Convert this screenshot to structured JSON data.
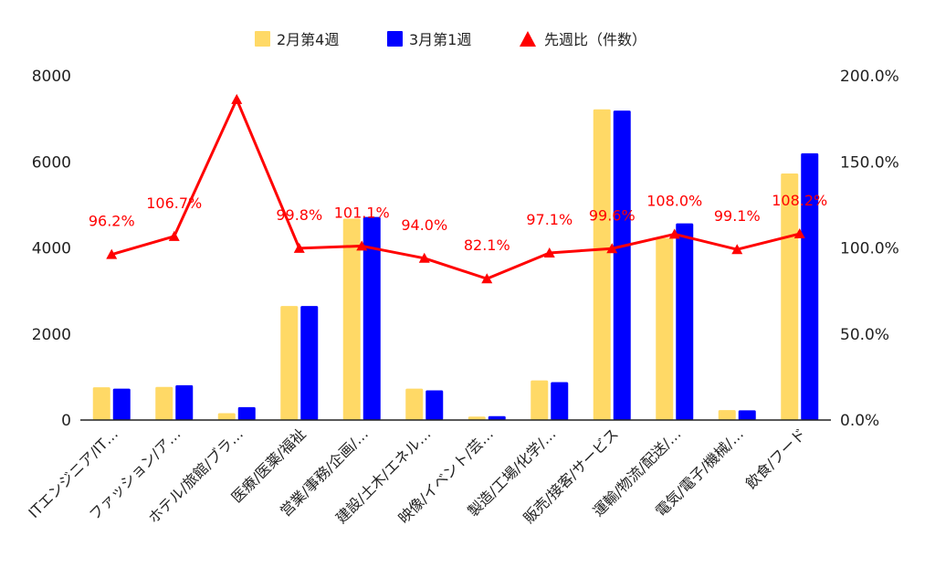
{
  "colors": {
    "series1": "#ffd966",
    "series2": "#0000ff",
    "ratio": "#ff0000",
    "axis": "#222222"
  },
  "chart_data": {
    "type": "bar",
    "categories": [
      "ITエンジニア/IT…",
      "ファッション/ア…",
      "ホテル/旅館/ブラ…",
      "医療/医薬/福祉",
      "営業/事務/企画/…",
      "建設/土木/エネル…",
      "映像/イベント/芸…",
      "製造/工場/化学/…",
      "販売/接客/サービス",
      "運輸/物流/配送/…",
      "電気/電子/機械/…",
      "飲食/フード"
    ],
    "series": [
      {
        "name": "2月第4週",
        "axis": "left",
        "type": "bar",
        "values": [
          760,
          770,
          160,
          2650,
          4680,
          730,
          80,
          920,
          7220,
          4230,
          230,
          5730
        ]
      },
      {
        "name": "3月第1週",
        "axis": "left",
        "type": "bar",
        "values": [
          730,
          810,
          300,
          2650,
          4720,
          690,
          90,
          880,
          7190,
          4570,
          225,
          6200
        ]
      },
      {
        "name": "先週比（件数）",
        "axis": "right",
        "type": "line",
        "values": [
          96.2,
          106.7,
          186.3,
          99.8,
          101.1,
          94.0,
          82.1,
          97.1,
          99.6,
          108.0,
          99.1,
          108.2
        ],
        "labels": [
          "96.2%",
          "106.7%",
          null,
          "99.8%",
          "101.1%",
          "94.0%",
          "82.1%",
          "97.1%",
          "99.6%",
          "108.0%",
          "99.1%",
          "108.2%"
        ]
      }
    ],
    "y_left": {
      "ylim": [
        0,
        8000
      ],
      "ticks": [
        "0",
        "2000",
        "4000",
        "6000",
        "8000"
      ]
    },
    "y_right": {
      "ylim": [
        0,
        200
      ],
      "ticks": [
        "0.0%",
        "50.0%",
        "100.0%",
        "150.0%",
        "200.0%"
      ]
    },
    "legend": "top",
    "grid": false
  }
}
